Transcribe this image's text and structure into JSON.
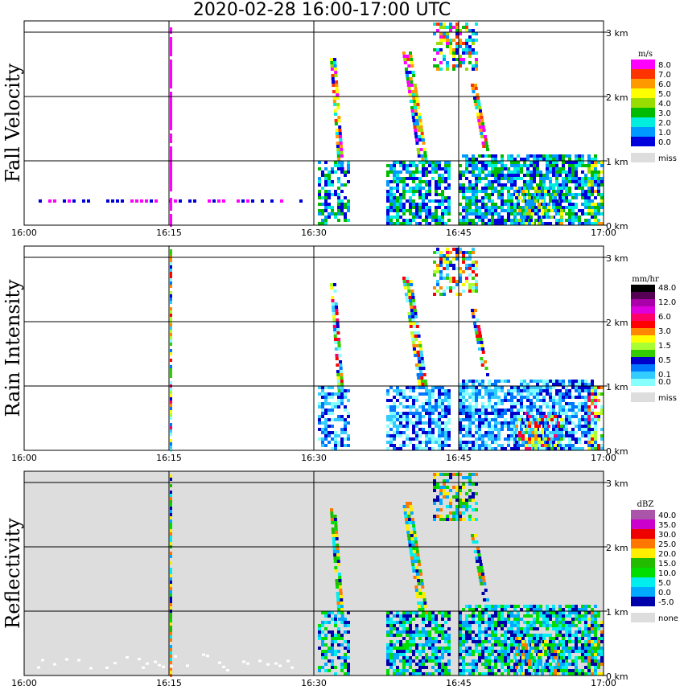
{
  "title": "2020-02-28   16:00-17:00 UTC",
  "chart_data": [
    {
      "type": "heatmap",
      "ylabel": "Fall Velocity",
      "x_ticks": [
        "16:00",
        "16:15",
        "16:30",
        "16:45",
        "17:00"
      ],
      "y_ticks": [
        "0 km",
        "1 km",
        "2 km",
        "3 km"
      ],
      "legend": {
        "unit": "m/s",
        "labels": [
          "8.0",
          "7.0",
          "6.0",
          "5.0",
          "4.0",
          "3.0",
          "2.0",
          "1.0",
          "0.0"
        ],
        "colors": [
          "#ff00ff",
          "#ff3300",
          "#ff9900",
          "#ffff00",
          "#99dd00",
          "#00bb00",
          "#00eedd",
          "#0099ff",
          "#0000dd"
        ],
        "missing_label": "miss",
        "missing_color": "#dddddd"
      },
      "background": "#ffffff"
    },
    {
      "type": "heatmap",
      "ylabel": "Rain Intensity",
      "x_ticks": [
        "16:00",
        "16:15",
        "16:30",
        "16:45",
        "17:00"
      ],
      "y_ticks": [
        "0 km",
        "1 km",
        "2 km",
        "3 km"
      ],
      "legend": {
        "unit": "mm/hr",
        "labels": [
          "48.0",
          "",
          "12.0",
          "",
          "6.0",
          "",
          "3.0",
          "",
          "1.5",
          "",
          "0.5",
          "",
          "0.1",
          "0.0"
        ],
        "colors": [
          "#000000",
          "#550055",
          "#aa00aa",
          "#dd00dd",
          "#ff0066",
          "#ff0000",
          "#ff8800",
          "#ffff00",
          "#aaff33",
          "#33cc00",
          "#0000cc",
          "#0077ff",
          "#33ccff",
          "#88ffff"
        ],
        "missing_label": "miss",
        "missing_color": "#dddddd"
      },
      "background": "#ffffff"
    },
    {
      "type": "heatmap",
      "ylabel": "Reflectivity",
      "x_ticks": [
        "16:00",
        "16:15",
        "16:30",
        "16:45",
        "17:00"
      ],
      "y_ticks": [
        "0 km",
        "1 km",
        "2 km",
        "3 km"
      ],
      "legend": {
        "unit": "dBZ",
        "labels": [
          "40.0",
          "35.0",
          "30.0",
          "25.0",
          "20.0",
          "15.0",
          "10.0",
          "5.0",
          "0.0",
          "-5.0"
        ],
        "colors": [
          "#aa55aa",
          "#cc00cc",
          "#ee0000",
          "#ff7700",
          "#ffee00",
          "#22bb00",
          "#00dd00",
          "#00eeee",
          "#00aaff",
          "#0000aa"
        ],
        "missing_label": "none",
        "missing_color": "#dddddd"
      },
      "background": "#dddddd"
    }
  ]
}
